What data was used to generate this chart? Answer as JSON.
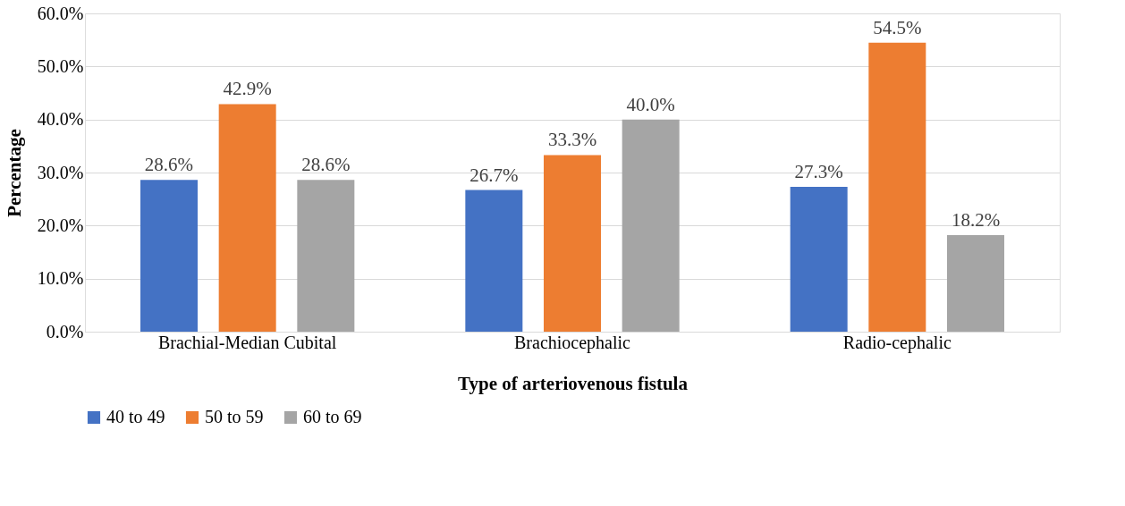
{
  "chart_data": {
    "type": "bar",
    "xlabel": "Type of arteriovenous fistula",
    "ylabel": "Percentage",
    "categories": [
      "Brachial-Median Cubital",
      "Brachiocephalic",
      "Radio-cephalic"
    ],
    "series": [
      {
        "name": "40 to 49",
        "color": "#4472c4",
        "values": [
          28.6,
          26.7,
          27.3
        ],
        "value_labels": [
          "28.6%",
          "26.7%",
          "27.3%"
        ]
      },
      {
        "name": "50 to 59",
        "color": "#ed7d31",
        "values": [
          42.9,
          33.3,
          54.5
        ],
        "value_labels": [
          "42.9%",
          "33.3%",
          "54.5%"
        ]
      },
      {
        "name": "60 to 69",
        "color": "#a5a5a5",
        "values": [
          28.6,
          40.0,
          18.2
        ],
        "value_labels": [
          "28.6%",
          "40.0%",
          "18.2%"
        ]
      }
    ],
    "ylim": [
      0,
      60
    ],
    "yticks": [
      {
        "value": 0,
        "label": "0.0%"
      },
      {
        "value": 10,
        "label": "10.0%"
      },
      {
        "value": 20,
        "label": "20.0%"
      },
      {
        "value": 30,
        "label": "30.0%"
      },
      {
        "value": 40,
        "label": "40.0%"
      },
      {
        "value": 50,
        "label": "50.0%"
      },
      {
        "value": 60,
        "label": "60.0%"
      }
    ],
    "grid": "y",
    "legend": "bottom"
  }
}
